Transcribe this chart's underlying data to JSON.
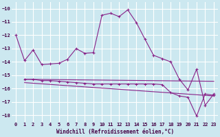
{
  "xlabel": "Windchill (Refroidissement éolien,°C)",
  "background_color": "#cce8f0",
  "grid_color": "#ffffff",
  "line_color": "#882288",
  "xlim": [
    -0.5,
    23.5
  ],
  "ylim": [
    -18.5,
    -9.5
  ],
  "yticks": [
    -18,
    -17,
    -16,
    -15,
    -14,
    -13,
    -12,
    -11,
    -10
  ],
  "xticks": [
    0,
    1,
    2,
    3,
    4,
    5,
    6,
    7,
    8,
    9,
    10,
    11,
    12,
    13,
    14,
    15,
    16,
    17,
    18,
    19,
    20,
    21,
    22,
    23
  ],
  "series1_x": [
    0,
    1,
    2,
    3,
    4,
    5,
    6,
    7,
    8,
    9,
    10,
    11,
    12,
    13,
    14,
    15,
    16,
    17,
    18,
    19,
    20,
    21,
    22,
    23
  ],
  "series1_y": [
    -12.0,
    -13.9,
    -13.1,
    -14.2,
    -14.15,
    -14.1,
    -13.8,
    -13.0,
    -13.35,
    -13.3,
    -10.5,
    -10.35,
    -10.6,
    -10.1,
    -11.05,
    -12.3,
    -13.5,
    -13.75,
    -14.0,
    -15.3,
    -16.1,
    -14.55,
    -17.25,
    -16.4
  ],
  "series2_x": [
    1,
    2,
    3,
    4,
    5,
    6,
    7,
    8,
    9,
    10,
    11,
    12,
    13,
    14,
    15,
    16,
    17,
    18,
    19,
    20,
    21,
    22,
    23
  ],
  "series2_y": [
    -15.3,
    -15.3,
    -15.4,
    -15.4,
    -15.45,
    -15.5,
    -15.55,
    -15.6,
    -15.65,
    -15.65,
    -15.65,
    -15.65,
    -15.65,
    -15.65,
    -15.65,
    -15.65,
    -15.7,
    -16.3,
    -16.55,
    -16.65,
    -18.05,
    -16.4,
    -16.5
  ],
  "series3_x": [
    1,
    23
  ],
  "series3_y": [
    -15.3,
    -15.45
  ],
  "series4_x": [
    1,
    23
  ],
  "series4_y": [
    -15.55,
    -16.55
  ]
}
